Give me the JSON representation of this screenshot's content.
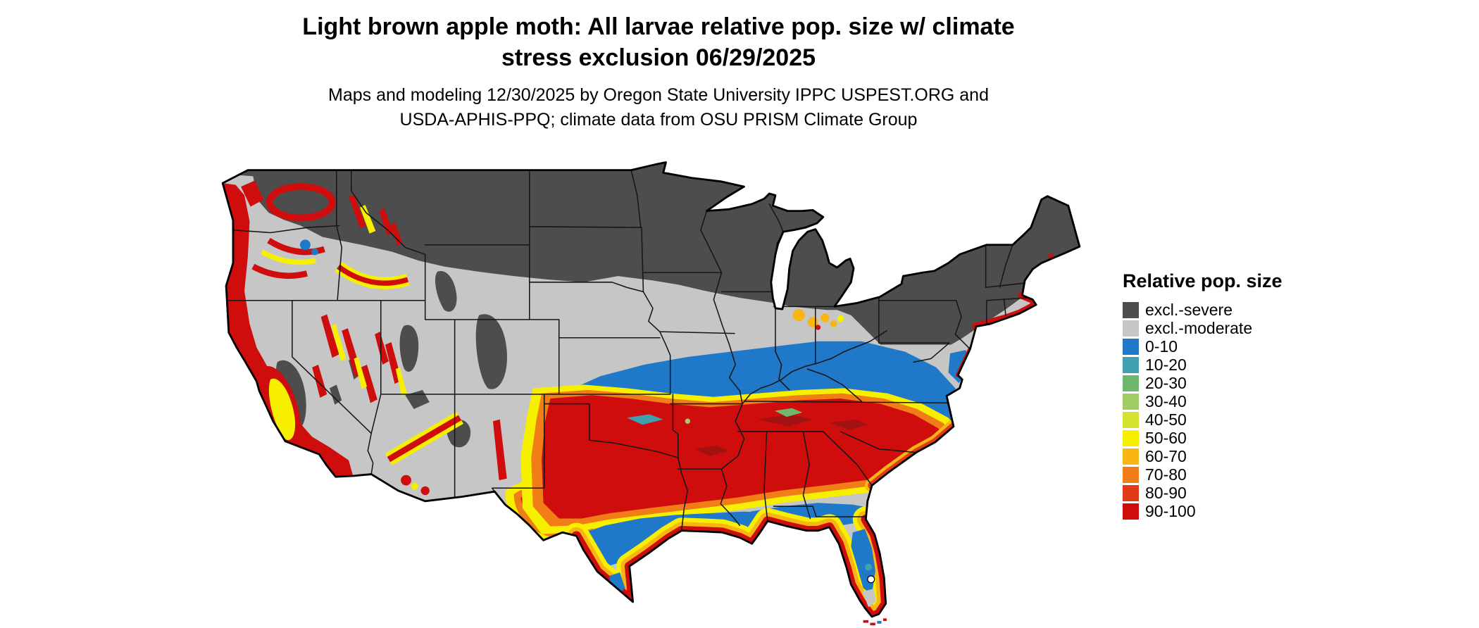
{
  "title": {
    "line1": "Light brown apple moth: All larvae relative pop. size w/ climate",
    "line2": "stress exclusion 06/29/2025"
  },
  "subtitle": {
    "line1": "Maps and modeling 12/30/2025 by Oregon State University IPPC USPEST.ORG and",
    "line2": "USDA-APHIS-PPQ; climate data from OSU PRISM Climate Group"
  },
  "legend": {
    "title": "Relative pop. size",
    "items": [
      {
        "label": "excl.-severe",
        "color": "#4d4d4d"
      },
      {
        "label": "excl.-moderate",
        "color": "#c6c6c6"
      },
      {
        "label": "0-10",
        "color": "#1f78c8"
      },
      {
        "label": "10-20",
        "color": "#3fa0ae"
      },
      {
        "label": "20-30",
        "color": "#6fb76c"
      },
      {
        "label": "30-40",
        "color": "#9fcc63"
      },
      {
        "label": "40-50",
        "color": "#d4e22f"
      },
      {
        "label": "50-60",
        "color": "#f7ef00"
      },
      {
        "label": "60-70",
        "color": "#f9b514"
      },
      {
        "label": "70-80",
        "color": "#f07d17"
      },
      {
        "label": "80-90",
        "color": "#e03a16"
      },
      {
        "label": "90-100",
        "color": "#cf0d0c"
      }
    ]
  }
}
